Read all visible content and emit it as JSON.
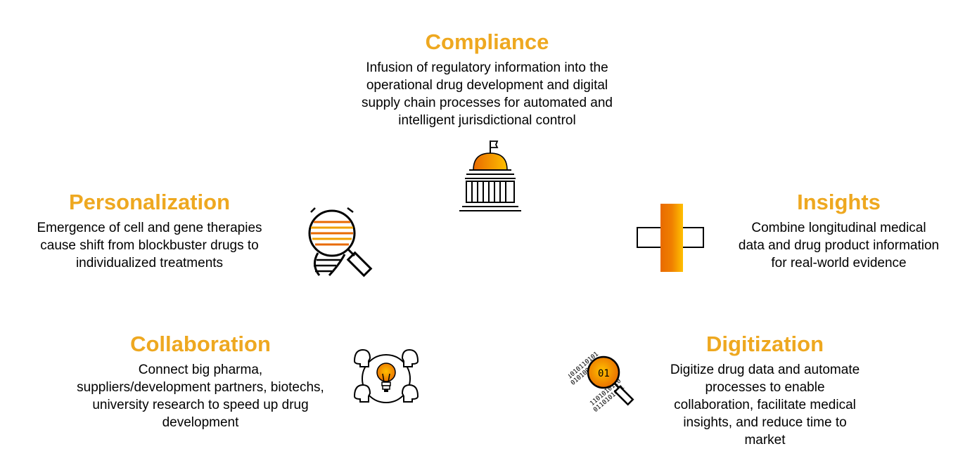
{
  "colors": {
    "accent": "#EEA820",
    "orange": "#F0A000",
    "dark_orange": "#E86A00",
    "line": "#000000"
  },
  "compliance": {
    "title": "Compliance",
    "lines": [
      "Infusion of regulatory information into the",
      "operational drug development and digital",
      "supply chain processes for automated and",
      "intelligent jurisdictional control"
    ],
    "icon": "capitol-building-icon"
  },
  "personalization": {
    "title": "Personalization",
    "lines": [
      "Emergence of cell and gene therapies",
      "cause shift from blockbuster drugs to",
      "individualized treatments"
    ],
    "icon": "dna-magnifier-icon"
  },
  "insights": {
    "title": "Insights",
    "lines": [
      "Combine longitudinal medical",
      "data and drug product information",
      "for real-world evidence"
    ],
    "icon": "medical-cross-icon"
  },
  "collaboration": {
    "title": "Collaboration",
    "lines": [
      "Connect big pharma,",
      "suppliers/development partners, biotechs,",
      "university research to speed up drug",
      "development"
    ],
    "icon": "team-lightbulb-icon"
  },
  "digitization": {
    "title": "Digitization",
    "lines": [
      "Digitize drug data and automate",
      "processes to enable",
      "collaboration, facilitate medical",
      "insights, and reduce time to",
      "market"
    ],
    "icon": "binary-magnifier-icon"
  }
}
